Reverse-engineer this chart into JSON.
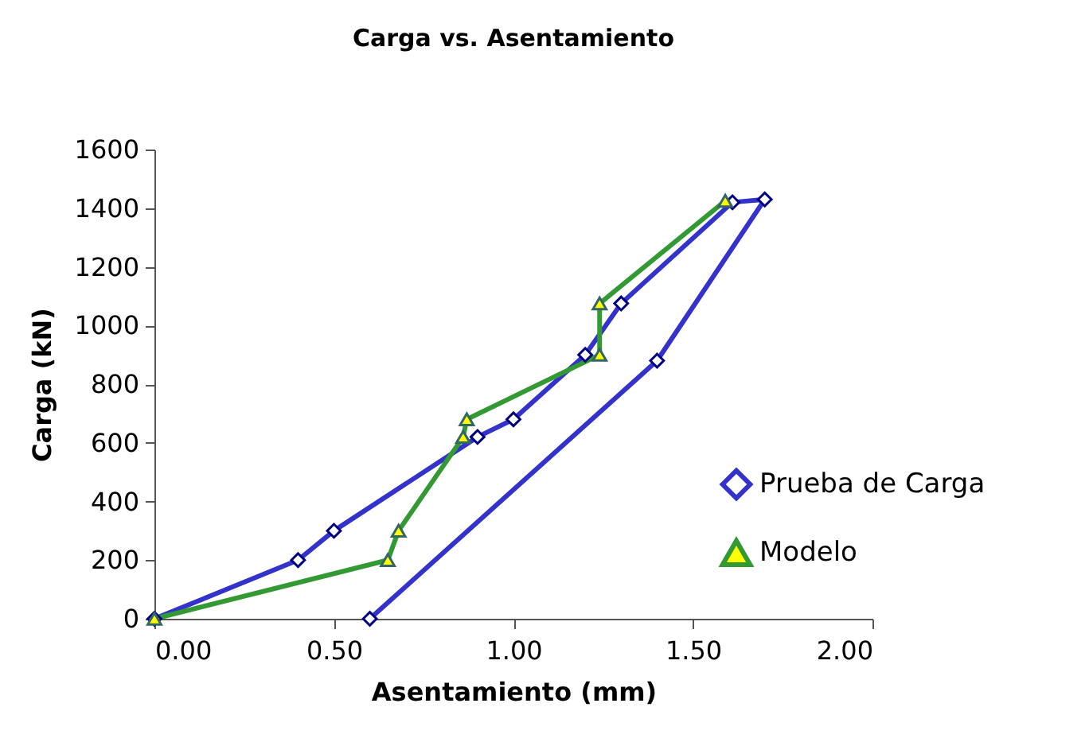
{
  "chart_data": {
    "type": "line",
    "title": "Carga vs. Asentamiento",
    "xlabel": "Asentamiento (mm)",
    "ylabel": "Carga (kN)",
    "xlim": [
      0,
      2
    ],
    "xticks": [
      {
        "value": 0,
        "label": "0.00"
      },
      {
        "value": 0.5,
        "label": "0.50"
      },
      {
        "value": 1,
        "label": "1.00"
      },
      {
        "value": 1.5,
        "label": "1.50"
      },
      {
        "value": 2,
        "label": "2.00"
      }
    ],
    "ylim": [
      0,
      1600
    ],
    "yticks": [
      0,
      200,
      400,
      600,
      800,
      1000,
      1200,
      1400,
      1600
    ],
    "grid": false,
    "legend": "bottom right",
    "series": [
      {
        "name": "Prueba de Carga",
        "color": "#3333cc",
        "marker": "diamond",
        "x": [
          0,
          0.4,
          0.5,
          0.9,
          1.0,
          1.2,
          1.3,
          1.61,
          1.7,
          1.4,
          0.6
        ],
        "values": [
          0,
          200,
          300,
          620,
          680,
          900,
          1075,
          1420,
          1430,
          880,
          0
        ]
      },
      {
        "name": "Modelo",
        "color": "#339933",
        "marker": "triangle",
        "x": [
          0,
          0.65,
          0.68,
          0.86,
          0.87,
          1.24,
          1.24,
          1.59
        ],
        "values": [
          0,
          200,
          300,
          620,
          680,
          900,
          1075,
          1425
        ]
      }
    ]
  }
}
